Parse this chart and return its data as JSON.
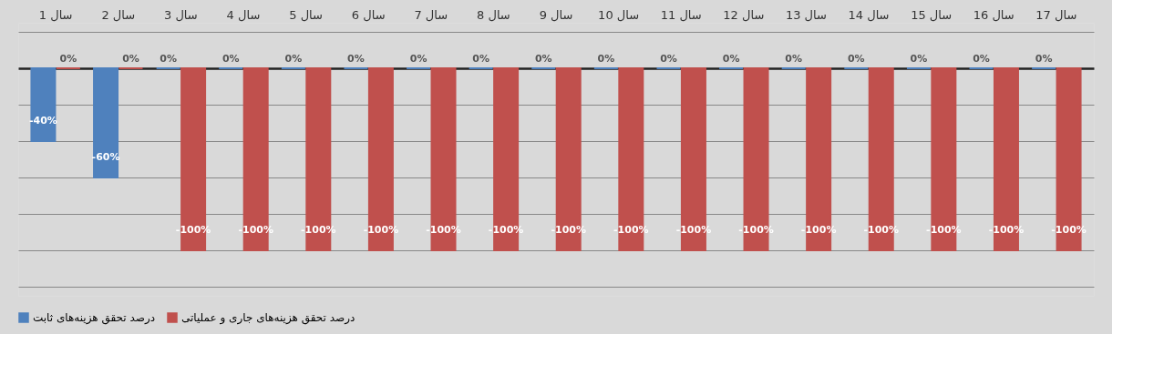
{
  "chart_data": {
    "type": "bar",
    "categories": [
      "سال 1",
      "سال 2",
      "سال 3",
      "سال 4",
      "سال 5",
      "سال 6",
      "سال 7",
      "سال 8",
      "سال 9",
      "سال 10",
      "سال 11",
      "سال 12",
      "سال 13",
      "سال 14",
      "سال 15",
      "سال 16",
      "سال 17"
    ],
    "series": [
      {
        "name": "درصد تحقق هزینه‌های ثابت",
        "color": "#4f81bd",
        "values": [
          -40,
          -60,
          0,
          0,
          0,
          0,
          0,
          0,
          0,
          0,
          0,
          0,
          0,
          0,
          0,
          0,
          0
        ],
        "value_labels": [
          "-40%",
          "-60%",
          "0%",
          "0%",
          "0%",
          "0%",
          "0%",
          "0%",
          "0%",
          "0%",
          "0%",
          "0%",
          "0%",
          "0%",
          "0%",
          "0%",
          "0%"
        ]
      },
      {
        "name": "درصد تحقق هزینه‌های جاری و عملیاتی",
        "color": "#c0504d",
        "values": [
          0,
          0,
          -100,
          -100,
          -100,
          -100,
          -100,
          -100,
          -100,
          -100,
          -100,
          -100,
          -100,
          -100,
          -100,
          -100,
          -100
        ],
        "value_labels": [
          "0%",
          "0%",
          "-100%",
          "-100%",
          "-100%",
          "-100%",
          "-100%",
          "-100%",
          "-100%",
          "-100%",
          "-100%",
          "-100%",
          "-100%",
          "-100%",
          "-100%",
          "-100%",
          "-100%"
        ]
      }
    ],
    "grid": "y",
    "tick_labels": "x",
    "legend": "bottom"
  }
}
